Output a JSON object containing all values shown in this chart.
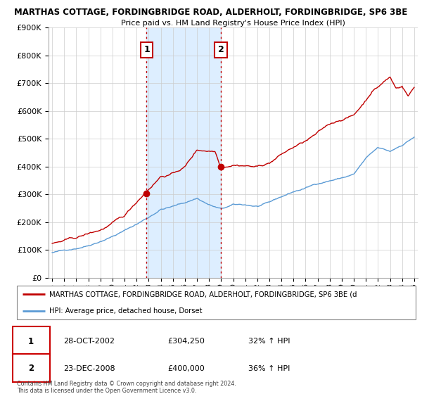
{
  "title": "MARTHAS COTTAGE, FORDINGBRIDGE ROAD, ALDERHOLT, FORDINGBRIDGE, SP6 3BE",
  "subtitle": "Price paid vs. HM Land Registry's House Price Index (HPI)",
  "ylim": [
    0,
    900000
  ],
  "yticks": [
    0,
    100000,
    200000,
    300000,
    400000,
    500000,
    600000,
    700000,
    800000,
    900000
  ],
  "ytick_labels": [
    "£0",
    "£100K",
    "£200K",
    "£300K",
    "£400K",
    "£500K",
    "£600K",
    "£700K",
    "£800K",
    "£900K"
  ],
  "hpi_color": "#5b9bd5",
  "price_color": "#c00000",
  "vline_color": "#c00000",
  "span_color": "#ddeeff",
  "purchase1_x": 2002.83,
  "purchase1_y": 304250,
  "purchase1_label": "1",
  "purchase2_x": 2008.98,
  "purchase2_y": 400000,
  "purchase2_label": "2",
  "legend_price_label": "MARTHAS COTTAGE, FORDINGBRIDGE ROAD, ALDERHOLT, FORDINGBRIDGE, SP6 3BE (d",
  "legend_hpi_label": "HPI: Average price, detached house, Dorset",
  "table_row1": [
    "1",
    "28-OCT-2002",
    "£304,250",
    "32% ↑ HPI"
  ],
  "table_row2": [
    "2",
    "23-DEC-2008",
    "£400,000",
    "36% ↑ HPI"
  ],
  "footer": "Contains HM Land Registry data © Crown copyright and database right 2024.\nThis data is licensed under the Open Government Licence v3.0.",
  "background_color": "#ffffff",
  "plot_bg_color": "#ffffff",
  "grid_color": "#cccccc",
  "xlim_left": 1994.7,
  "xlim_right": 2025.3
}
